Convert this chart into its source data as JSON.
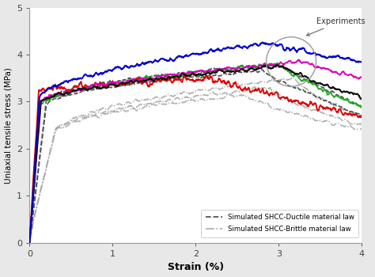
{
  "title": "",
  "xlabel": "Strain (%)",
  "ylabel": "Uniaxial tensile stress (MPa)",
  "xlim": [
    0,
    4
  ],
  "ylim": [
    0,
    5
  ],
  "xticks": [
    0,
    1,
    2,
    3,
    4
  ],
  "yticks": [
    0,
    1,
    2,
    3,
    4,
    5
  ],
  "legend_ductile": "Simulated SHCC-Ductile material law",
  "legend_brittle": "Simulated SHCC-Brittle material law",
  "experiments_label": "Experiments",
  "bg_color": "#e8e8e8",
  "plot_bg": "#ffffff"
}
